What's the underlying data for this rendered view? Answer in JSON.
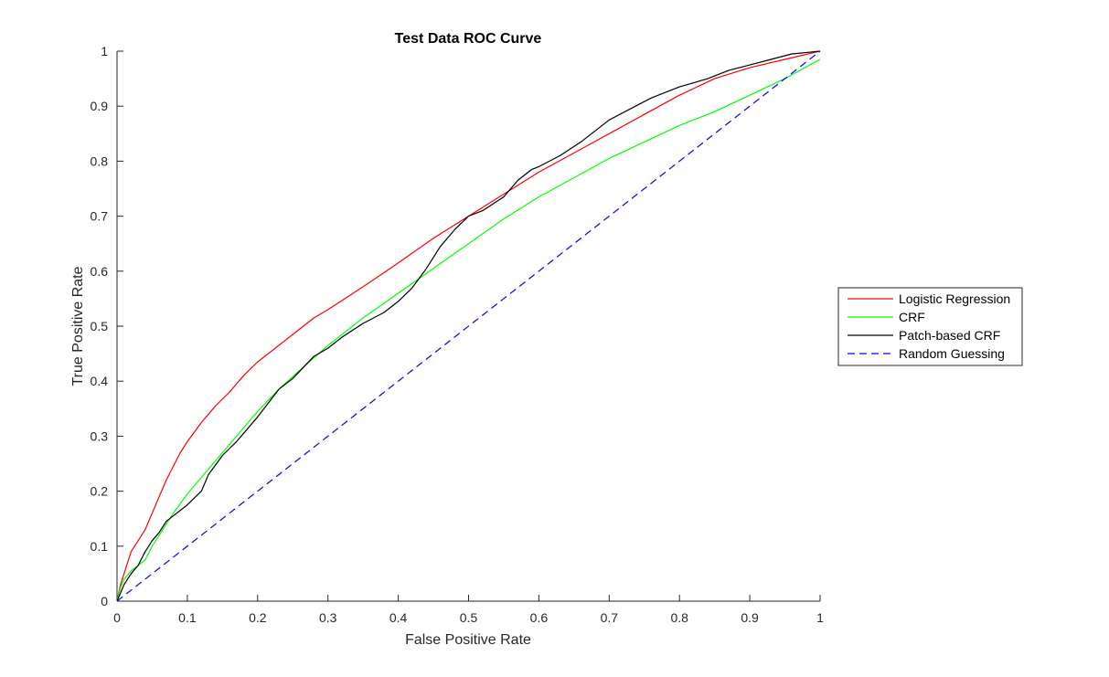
{
  "chart_data": {
    "type": "line",
    "title": "Test Data ROC Curve",
    "xlabel": "False Positive Rate",
    "ylabel": "True Positive Rate",
    "xlim": [
      0,
      1
    ],
    "ylim": [
      0,
      1
    ],
    "xticks": [
      "0",
      "0.1",
      "0.2",
      "0.3",
      "0.4",
      "0.5",
      "0.6",
      "0.7",
      "0.8",
      "0.9",
      "1"
    ],
    "yticks": [
      "0",
      "0.1",
      "0.2",
      "0.3",
      "0.4",
      "0.5",
      "0.6",
      "0.7",
      "0.8",
      "0.9",
      "1"
    ],
    "grid": false,
    "legend_position": "right",
    "series": [
      {
        "name": "Logistic Regression",
        "color": "#ff0000",
        "style": "solid",
        "x": [
          0,
          0.005,
          0.01,
          0.02,
          0.03,
          0.04,
          0.05,
          0.06,
          0.07,
          0.08,
          0.09,
          0.1,
          0.12,
          0.14,
          0.16,
          0.18,
          0.2,
          0.22,
          0.25,
          0.28,
          0.3,
          0.33,
          0.36,
          0.4,
          0.45,
          0.5,
          0.55,
          0.6,
          0.65,
          0.7,
          0.75,
          0.8,
          0.85,
          0.9,
          0.95,
          1
        ],
        "y": [
          0,
          0.03,
          0.05,
          0.09,
          0.11,
          0.13,
          0.16,
          0.19,
          0.22,
          0.245,
          0.27,
          0.29,
          0.325,
          0.355,
          0.38,
          0.41,
          0.435,
          0.455,
          0.485,
          0.515,
          0.53,
          0.555,
          0.58,
          0.615,
          0.66,
          0.7,
          0.74,
          0.78,
          0.815,
          0.85,
          0.885,
          0.92,
          0.95,
          0.97,
          0.985,
          1
        ]
      },
      {
        "name": "CRF",
        "color": "#00ff00",
        "style": "solid",
        "x": [
          0,
          0.005,
          0.01,
          0.02,
          0.03,
          0.04,
          0.05,
          0.06,
          0.07,
          0.08,
          0.1,
          0.12,
          0.15,
          0.18,
          0.2,
          0.23,
          0.26,
          0.3,
          0.35,
          0.4,
          0.45,
          0.5,
          0.55,
          0.6,
          0.65,
          0.7,
          0.75,
          0.8,
          0.85,
          0.9,
          0.95,
          1
        ],
        "y": [
          0,
          0.025,
          0.04,
          0.055,
          0.065,
          0.075,
          0.1,
          0.12,
          0.14,
          0.16,
          0.195,
          0.225,
          0.27,
          0.315,
          0.345,
          0.385,
          0.42,
          0.465,
          0.515,
          0.56,
          0.605,
          0.65,
          0.695,
          0.735,
          0.77,
          0.805,
          0.835,
          0.865,
          0.89,
          0.92,
          0.95,
          0.985
        ]
      },
      {
        "name": "Patch-based CRF",
        "color": "#000000",
        "style": "solid",
        "x": [
          0,
          0.005,
          0.01,
          0.02,
          0.03,
          0.04,
          0.05,
          0.06,
          0.07,
          0.08,
          0.1,
          0.12,
          0.13,
          0.15,
          0.17,
          0.2,
          0.23,
          0.25,
          0.28,
          0.3,
          0.32,
          0.35,
          0.38,
          0.4,
          0.42,
          0.44,
          0.46,
          0.48,
          0.5,
          0.52,
          0.55,
          0.57,
          0.59,
          0.6,
          0.63,
          0.66,
          0.7,
          0.73,
          0.76,
          0.8,
          0.84,
          0.87,
          0.9,
          0.93,
          0.96,
          1
        ],
        "y": [
          0,
          0.015,
          0.03,
          0.05,
          0.065,
          0.09,
          0.11,
          0.125,
          0.145,
          0.155,
          0.175,
          0.2,
          0.23,
          0.265,
          0.29,
          0.335,
          0.385,
          0.405,
          0.445,
          0.46,
          0.48,
          0.505,
          0.525,
          0.545,
          0.57,
          0.605,
          0.645,
          0.675,
          0.7,
          0.71,
          0.735,
          0.765,
          0.785,
          0.79,
          0.81,
          0.835,
          0.875,
          0.895,
          0.915,
          0.935,
          0.95,
          0.965,
          0.975,
          0.985,
          0.995,
          1
        ]
      },
      {
        "name": "Random Guessing",
        "color": "#0000ff",
        "style": "dashed",
        "x": [
          0,
          1
        ],
        "y": [
          0,
          1
        ]
      }
    ]
  }
}
